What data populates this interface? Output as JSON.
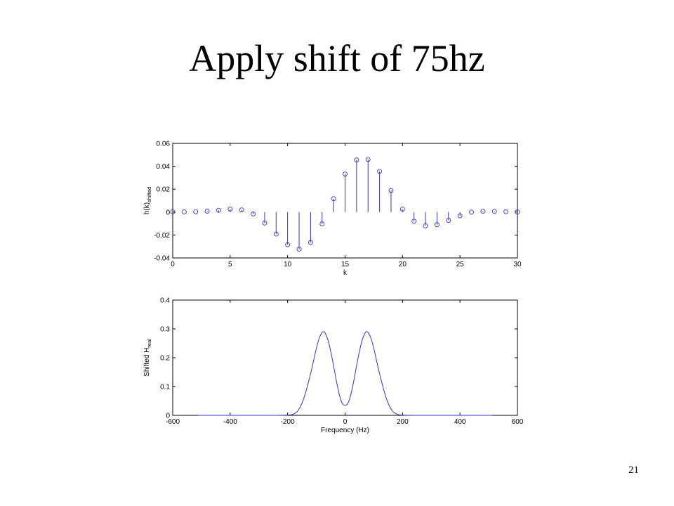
{
  "slide": {
    "title": "Apply shift of 75hz",
    "page_number": "21"
  },
  "colors": {
    "series": "#3333cc",
    "axis": "#000000"
  },
  "chart_data": [
    {
      "type": "stem",
      "xlabel": "k",
      "ylabel": "h(k)",
      "ylabel_sub": "shifted",
      "xlim": [
        0,
        30
      ],
      "ylim": [
        -0.04,
        0.06
      ],
      "xticks": [
        0,
        5,
        10,
        15,
        20,
        25,
        30
      ],
      "yticks": [
        -0.04,
        -0.02,
        0,
        0.02,
        0.04,
        0.06
      ],
      "x": [
        0,
        1,
        2,
        3,
        4,
        5,
        6,
        7,
        8,
        9,
        10,
        11,
        12,
        13,
        14,
        15,
        16,
        17,
        18,
        19,
        20,
        21,
        22,
        23,
        24,
        25,
        26,
        27,
        28,
        29,
        30
      ],
      "y": [
        0.0002,
        0.0002,
        0.0003,
        0.0008,
        0.0016,
        0.0026,
        0.0019,
        -0.0016,
        -0.0095,
        -0.0192,
        -0.0285,
        -0.0323,
        -0.0265,
        -0.0103,
        0.0117,
        0.0332,
        0.0455,
        0.046,
        0.0356,
        0.0188,
        0.0026,
        -0.008,
        -0.012,
        -0.011,
        -0.0072,
        -0.0032,
        0.0,
        0.0007,
        0.0006,
        0.0004,
        0.0001
      ]
    },
    {
      "type": "line",
      "xlabel": "Frequency (Hz)",
      "ylabel": "Shifted H",
      "ylabel_sub": "real",
      "xlim": [
        -600,
        600
      ],
      "ylim": [
        0,
        0.4
      ],
      "xticks": [
        -600,
        -400,
        -200,
        0,
        200,
        400,
        600
      ],
      "yticks": [
        0,
        0.1,
        0.2,
        0.3,
        0.4
      ],
      "x": [
        -512,
        -300,
        -250,
        -200,
        -180,
        -160,
        -140,
        -120,
        -110,
        -100,
        -90,
        -80,
        -75,
        -70,
        -60,
        -50,
        -40,
        -30,
        -20,
        -10,
        0,
        10,
        20,
        30,
        40,
        50,
        60,
        70,
        75,
        80,
        90,
        100,
        110,
        120,
        140,
        160,
        180,
        200,
        250,
        300,
        512
      ],
      "y": [
        0,
        0,
        0,
        0.0008,
        0.004,
        0.022,
        0.07,
        0.145,
        0.188,
        0.232,
        0.268,
        0.288,
        0.29,
        0.287,
        0.263,
        0.222,
        0.172,
        0.118,
        0.072,
        0.042,
        0.035,
        0.042,
        0.072,
        0.118,
        0.172,
        0.222,
        0.263,
        0.287,
        0.29,
        0.288,
        0.268,
        0.232,
        0.188,
        0.145,
        0.07,
        0.022,
        0.004,
        0.0008,
        0,
        0,
        0
      ]
    }
  ]
}
